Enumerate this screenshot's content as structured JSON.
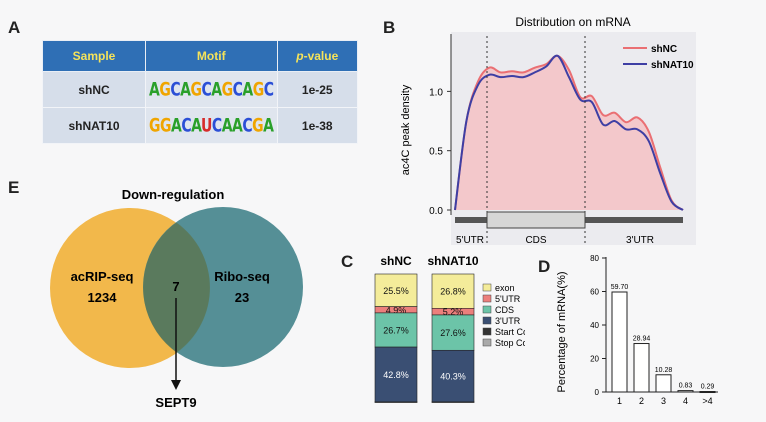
{
  "panels": {
    "a": "A",
    "b": "B",
    "c": "C",
    "d": "D",
    "e": "E"
  },
  "table": {
    "headers": {
      "sample": "Sample",
      "motif": "Motif",
      "pvalue_prefix": "p",
      "pvalue_suffix": "-value"
    },
    "rows": [
      {
        "sample": "shNC",
        "motif": "AGCAGCAGCAGC",
        "pvalue": "1e-25"
      },
      {
        "sample": "shNAT10",
        "motif": "GGACAUCAACGA",
        "pvalue": "1e-38"
      }
    ]
  },
  "chart_data": [
    {
      "id": "B",
      "type": "line",
      "title": "Distribution on mRNA",
      "ylabel": "ac4C peak density",
      "ylim": [
        0,
        1.45
      ],
      "yticks": [
        "0.0",
        "0.5",
        "1.0"
      ],
      "x": [
        0,
        0.05,
        0.1,
        0.15,
        0.2,
        0.25,
        0.3,
        0.35,
        0.4,
        0.45,
        0.5,
        0.55,
        0.6,
        0.65,
        0.7,
        0.75,
        0.8,
        0.85,
        0.9,
        0.95,
        1.0
      ],
      "series": [
        {
          "name": "shNC",
          "color": "#ea6f73",
          "values": [
            0.0,
            0.75,
            1.08,
            1.2,
            1.16,
            1.17,
            1.16,
            1.2,
            1.23,
            1.3,
            1.18,
            0.95,
            0.96,
            0.8,
            0.82,
            0.74,
            0.78,
            0.66,
            0.36,
            0.08,
            0.0
          ]
        },
        {
          "name": "shNAT10",
          "color": "#3e3fa4",
          "values": [
            0.0,
            0.75,
            1.05,
            1.14,
            1.12,
            1.13,
            1.12,
            1.16,
            1.21,
            1.3,
            1.12,
            0.93,
            0.91,
            0.72,
            0.75,
            0.68,
            0.68,
            0.58,
            0.31,
            0.07,
            0.0
          ]
        }
      ],
      "regions": [
        "5'UTR",
        "CDS",
        "3'UTR"
      ],
      "legend_position": "top-right"
    },
    {
      "id": "C",
      "type": "bar",
      "categories": [
        "shNC",
        "shNAT10"
      ],
      "series": [
        {
          "name": "exon",
          "color": "#f4ec9a",
          "values": [
            25.5,
            26.8
          ],
          "labels": [
            "25.5%",
            "26.8%"
          ]
        },
        {
          "name": "5'UTR",
          "color": "#ec7f7c",
          "values": [
            4.9,
            5.2
          ],
          "labels": [
            "4.9%",
            "5.2%"
          ]
        },
        {
          "name": "CDS",
          "color": "#6cc4a8",
          "values": [
            26.7,
            27.6
          ],
          "labels": [
            "26.7%",
            "27.6%"
          ]
        },
        {
          "name": "3'UTR",
          "color": "#3a4f73",
          "values": [
            42.8,
            40.3
          ],
          "labels": [
            "42.8%",
            "40.3%"
          ]
        },
        {
          "name": "Start Codon",
          "color": "#333333",
          "values": [
            0.05,
            0.05
          ],
          "labels": [
            "",
            ""
          ]
        },
        {
          "name": "Stop Codon",
          "color": "#aaaaaa",
          "values": [
            0.05,
            0.05
          ],
          "labels": [
            "",
            ""
          ]
        }
      ]
    },
    {
      "id": "D",
      "type": "bar",
      "categories": [
        "1",
        "2",
        "3",
        "4",
        ">4"
      ],
      "values": [
        59.7,
        28.94,
        10.28,
        0.83,
        0.29
      ],
      "value_labels": [
        "59.70",
        "28.94",
        "10.28",
        "0.83",
        "0.29"
      ],
      "ylabel": "Percentage of mRNA(%)",
      "ylim": [
        0,
        80
      ],
      "yticks": [
        "0",
        "20",
        "40",
        "60",
        "80"
      ]
    }
  ],
  "venn": {
    "title": "Down-regulation",
    "left": {
      "name": "acRIP-seq",
      "count": "1234",
      "color": "#f2b84b"
    },
    "right": {
      "name": "Ribo-seq",
      "count": "23",
      "color": "#3f8187"
    },
    "overlap": "7",
    "gene": "SEPT9"
  }
}
